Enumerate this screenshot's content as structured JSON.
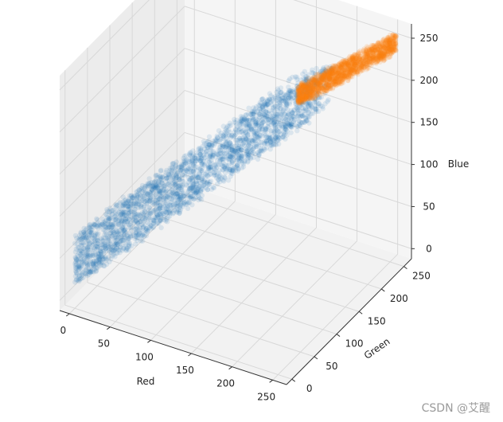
{
  "chart_data": {
    "type": "scatter",
    "projection": "3d",
    "xlabel": "Red",
    "ylabel": "Green",
    "zlabel": "Blue",
    "x_ticks": [
      0,
      50,
      100,
      150,
      200,
      250
    ],
    "y_ticks": [
      0,
      50,
      100,
      150,
      200,
      250
    ],
    "z_ticks": [
      0,
      50,
      100,
      150,
      200,
      250
    ],
    "xlim": [
      -12,
      267
    ],
    "ylim": [
      -12,
      267
    ],
    "zlim": [
      -12,
      267
    ],
    "grid": true,
    "series": [
      {
        "color": "#1f77b4",
        "alpha": 0.1,
        "cluster": {
          "red_range": [
            0,
            200
          ],
          "green_range": [
            0,
            200
          ],
          "blue_range": [
            0,
            220
          ]
        }
      },
      {
        "color": "#ff7f0e",
        "alpha": 0.1,
        "cluster": {
          "red_range": [
            175,
            255
          ],
          "green_range": [
            180,
            255
          ],
          "blue_range": [
            185,
            255
          ]
        }
      }
    ]
  },
  "watermark": "CSDN @艾醒"
}
